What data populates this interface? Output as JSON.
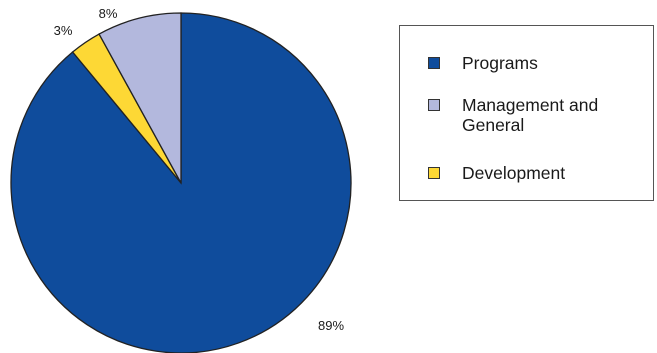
{
  "chart_data": {
    "type": "pie",
    "title": "",
    "slices": [
      {
        "label": "Programs",
        "value": 89,
        "display": "89%",
        "color": "#0f4c9c"
      },
      {
        "label": "Development",
        "value": 3,
        "display": "3%",
        "color": "#fdd835"
      },
      {
        "label": "Management and General",
        "value": 8,
        "display": "8%",
        "color": "#b3b8dd"
      }
    ],
    "legend": {
      "placement": "right",
      "entries": [
        {
          "label": "Programs",
          "color": "#0f4c9c"
        },
        {
          "label": "Management and General",
          "color": "#b3b8dd"
        },
        {
          "label": "Development",
          "color": "#fdd835"
        }
      ]
    }
  }
}
